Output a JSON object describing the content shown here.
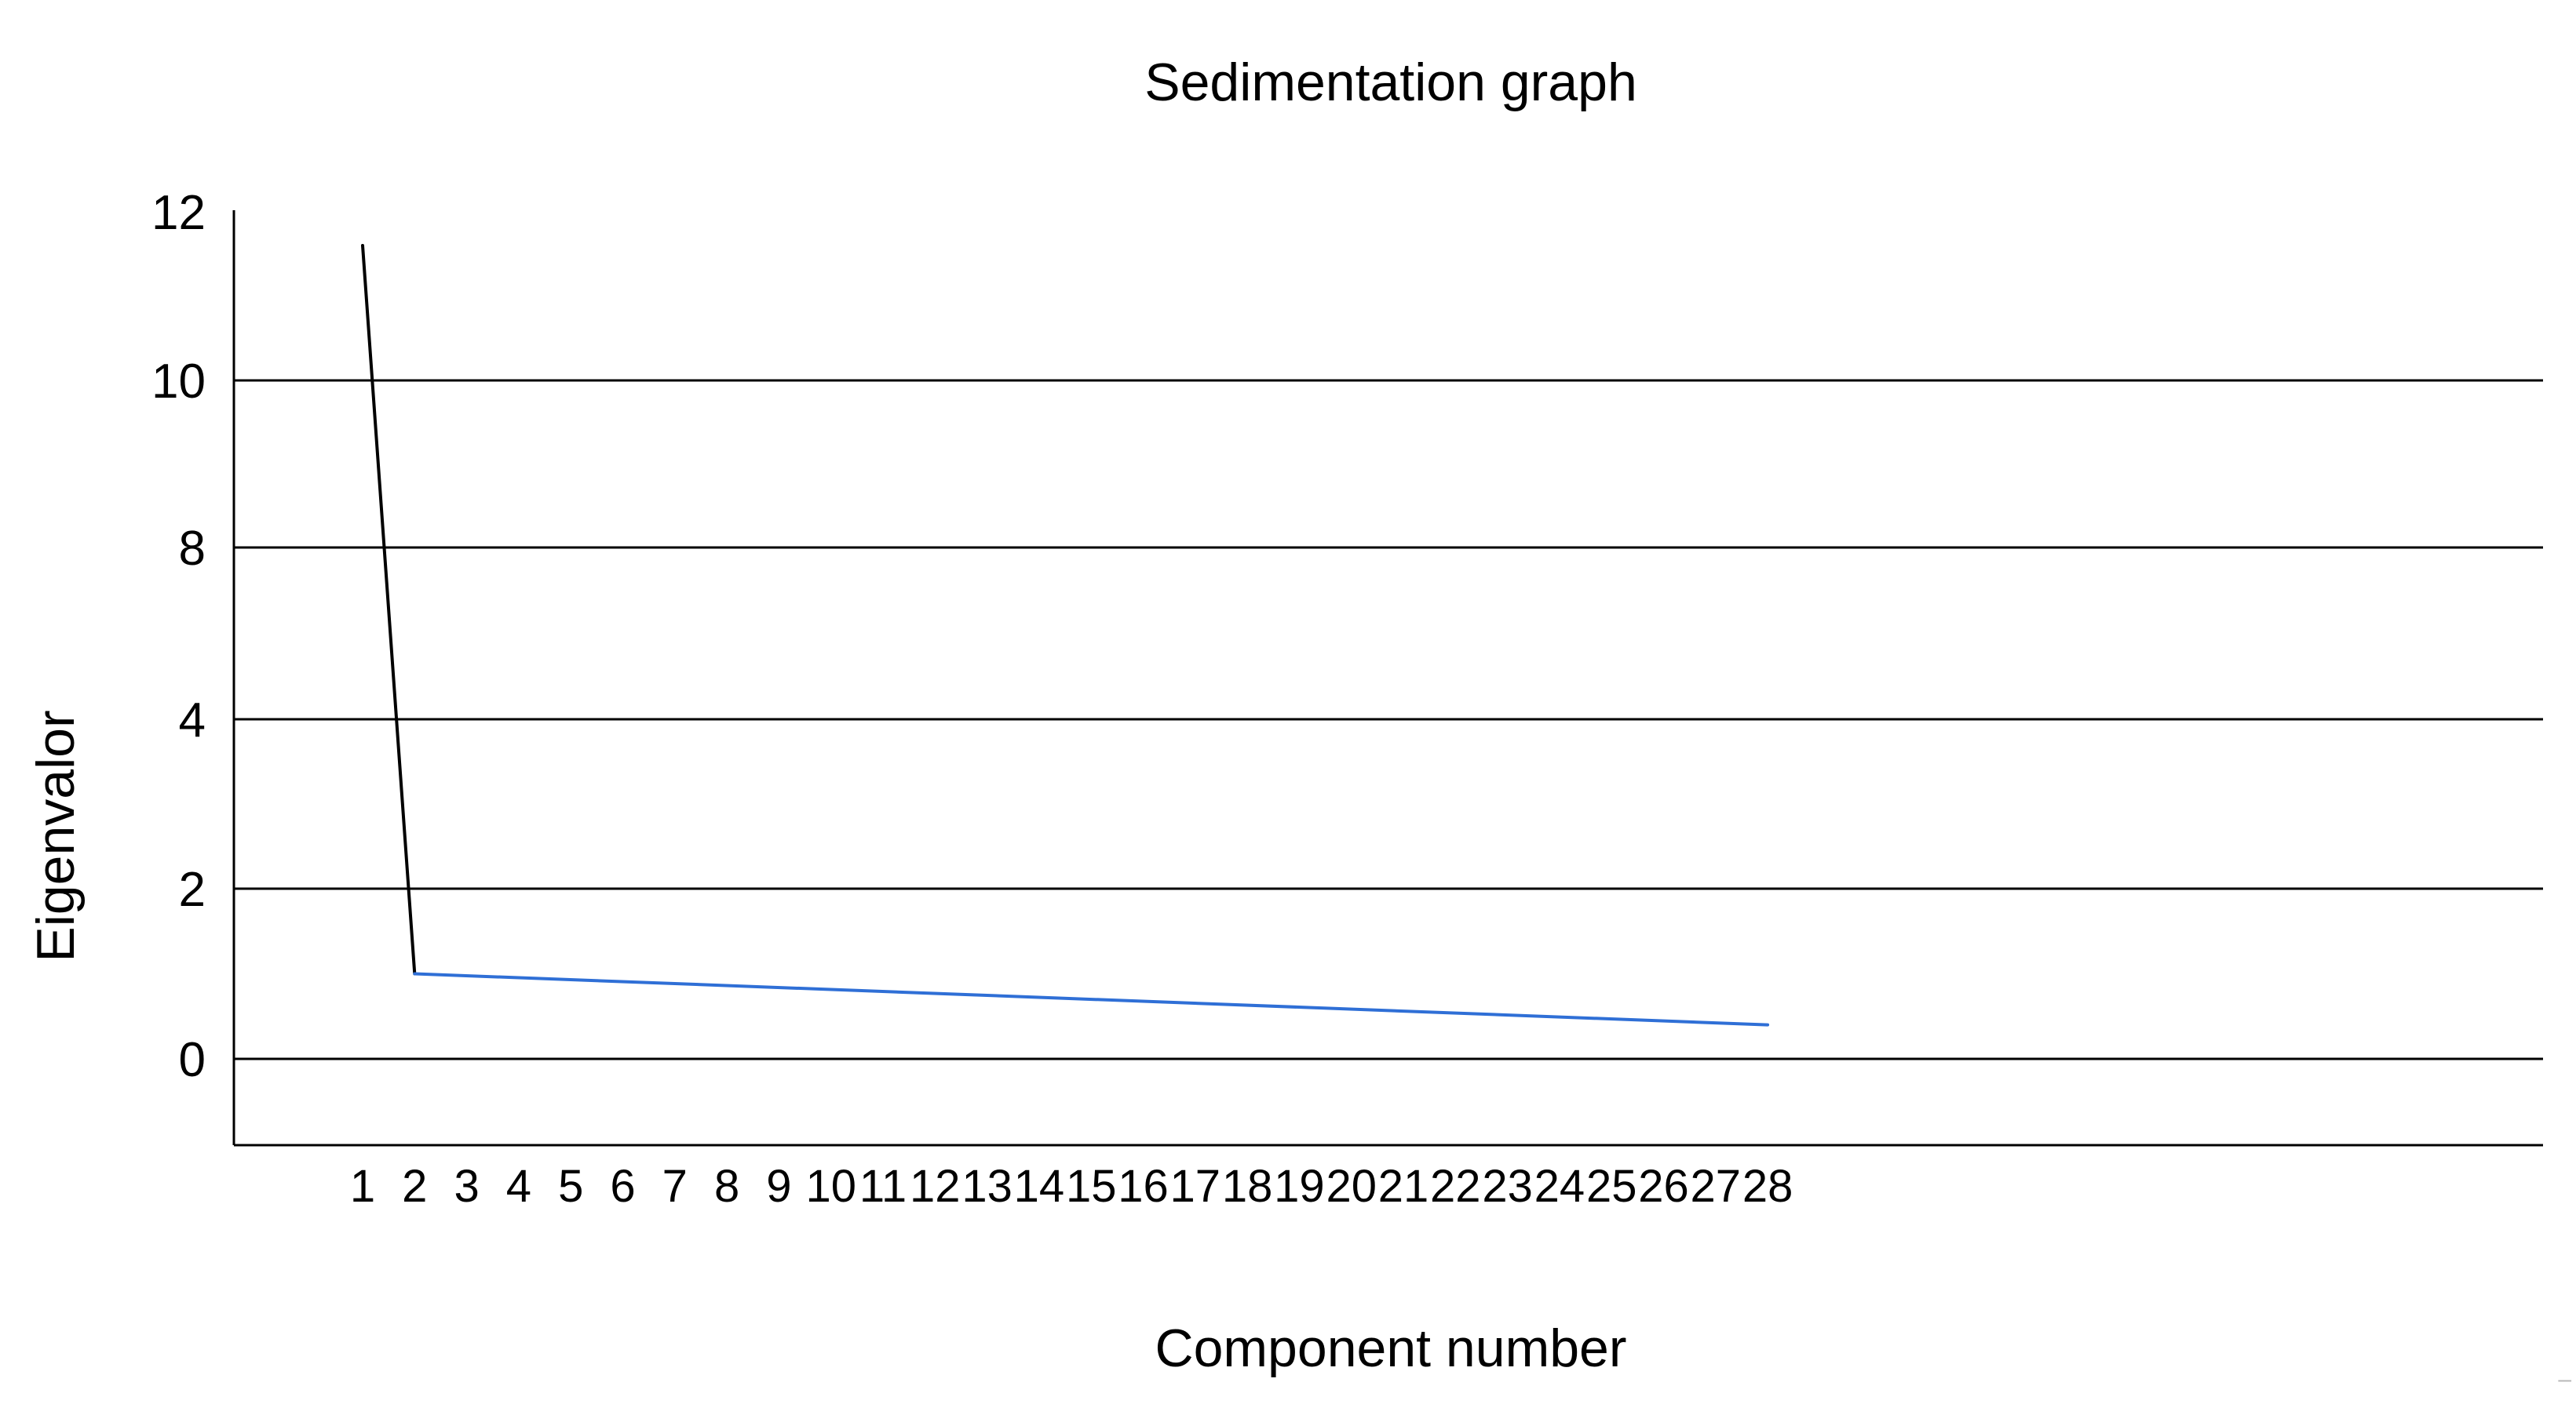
{
  "chart_data": {
    "type": "line",
    "title": "Sedimentation graph",
    "xlabel": "Component number",
    "ylabel": "Eigenvalor",
    "x_tick_labels": [
      "1",
      "2",
      "3",
      "4",
      "5",
      "6",
      "7",
      "8",
      "9",
      "10",
      "11",
      "12",
      "13",
      "14",
      "15",
      "16",
      "17",
      "18",
      "19",
      "20",
      "21",
      "22",
      "23",
      "24",
      "25",
      "26",
      "27",
      "28"
    ],
    "y_tick_labels": [
      "0",
      "2",
      "4",
      "8",
      "10",
      "12"
    ],
    "y_gridlines": [
      "0",
      "2",
      "4",
      "8",
      "10"
    ],
    "grid": true,
    "legend": "none",
    "line_segments": [
      {
        "color": "#000000",
        "points": [
          {
            "x": "1",
            "y": 11.6
          },
          {
            "x": "2",
            "y": 1.0
          }
        ]
      },
      {
        "color": "#2f6fd6",
        "points": [
          {
            "x": "2",
            "y": 1.0
          },
          {
            "x": "28",
            "y": 0.4
          }
        ]
      }
    ]
  },
  "corner_mark": "–"
}
